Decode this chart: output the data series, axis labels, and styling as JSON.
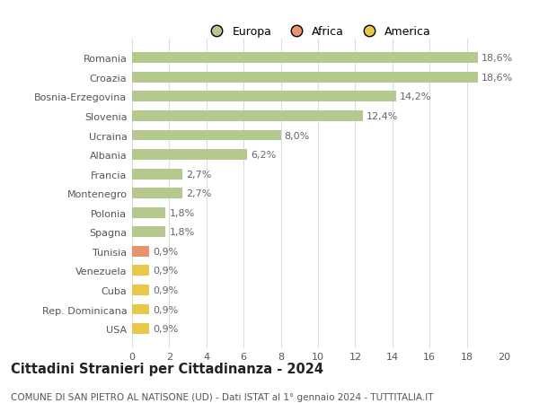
{
  "categories": [
    "Romania",
    "Croazia",
    "Bosnia-Erzegovina",
    "Slovenia",
    "Ucraina",
    "Albania",
    "Francia",
    "Montenegro",
    "Polonia",
    "Spagna",
    "Tunisia",
    "Venezuela",
    "Cuba",
    "Rep. Dominicana",
    "USA"
  ],
  "values": [
    18.6,
    18.6,
    14.2,
    12.4,
    8.0,
    6.2,
    2.7,
    2.7,
    1.8,
    1.8,
    0.9,
    0.9,
    0.9,
    0.9,
    0.9
  ],
  "labels": [
    "18,6%",
    "18,6%",
    "14,2%",
    "12,4%",
    "8,0%",
    "6,2%",
    "2,7%",
    "2,7%",
    "1,8%",
    "1,8%",
    "0,9%",
    "0,9%",
    "0,9%",
    "0,9%",
    "0,9%"
  ],
  "colors": [
    "#b5c98e",
    "#b5c98e",
    "#b5c98e",
    "#b5c98e",
    "#b5c98e",
    "#b5c98e",
    "#b5c98e",
    "#b5c98e",
    "#b5c98e",
    "#b5c98e",
    "#e8956d",
    "#e8c84a",
    "#e8c84a",
    "#e8c84a",
    "#e8c84a"
  ],
  "legend": [
    {
      "label": "Europa",
      "color": "#b5c98e"
    },
    {
      "label": "Africa",
      "color": "#e8956d"
    },
    {
      "label": "America",
      "color": "#e8c84a"
    }
  ],
  "title": "Cittadini Stranieri per Cittadinanza - 2024",
  "subtitle": "COMUNE DI SAN PIETRO AL NATISONE (UD) - Dati ISTAT al 1° gennaio 2024 - TUTTITALIA.IT",
  "xlim": [
    0,
    20
  ],
  "xticks": [
    0,
    2,
    4,
    6,
    8,
    10,
    12,
    14,
    16,
    18,
    20
  ],
  "background_color": "#ffffff",
  "grid_color": "#dddddd",
  "bar_height": 0.55,
  "title_fontsize": 10.5,
  "subtitle_fontsize": 7.5,
  "tick_fontsize": 8,
  "label_fontsize": 8,
  "legend_fontsize": 9
}
